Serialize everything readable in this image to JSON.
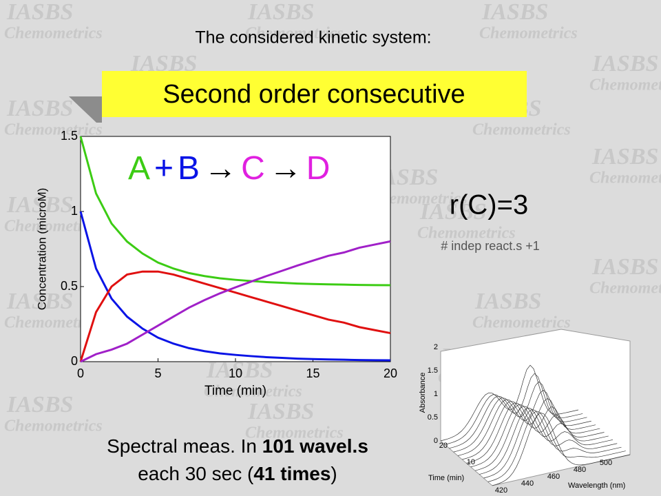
{
  "watermark": {
    "line1": "IASBS",
    "line2": "Chemometrics"
  },
  "title": "The considered kinetic system:",
  "banner": "Second order consecutive",
  "reaction": [
    "A",
    "+",
    "B",
    "→",
    "C",
    "→",
    "D"
  ],
  "rank": "r(C)=3",
  "rank_note": "# indep react.s +1",
  "footer": {
    "line1": [
      "Spectral meas. In ",
      "101 wavel.s"
    ],
    "line2": [
      "each 30 sec (",
      "41 times",
      ")"
    ]
  },
  "chart_data": {
    "type": "line",
    "x_label": "Time (min)",
    "y_label": "Concentration (microM)",
    "x": [
      0,
      1,
      2,
      3,
      4,
      5,
      6,
      7,
      8,
      9,
      10,
      11,
      12,
      13,
      14,
      15,
      16,
      17,
      18,
      19,
      20
    ],
    "series": [
      {
        "name": "A",
        "color": "#0a14e6",
        "values": [
          1,
          0.62,
          0.42,
          0.3,
          0.22,
          0.16,
          0.12,
          0.09,
          0.07,
          0.055,
          0.045,
          0.037,
          0.03,
          0.025,
          0.02,
          0.017,
          0.015,
          0.013,
          0.011,
          0.01,
          0.009
        ]
      },
      {
        "name": "B",
        "color": "#3ccc14",
        "values": [
          1.5,
          1.12,
          0.92,
          0.8,
          0.72,
          0.66,
          0.62,
          0.59,
          0.57,
          0.555,
          0.545,
          0.537,
          0.53,
          0.525,
          0.52,
          0.517,
          0.515,
          0.513,
          0.511,
          0.51,
          0.509
        ]
      },
      {
        "name": "C",
        "color": "#e01010",
        "values": [
          0,
          0.33,
          0.5,
          0.58,
          0.6,
          0.6,
          0.58,
          0.55,
          0.52,
          0.49,
          0.46,
          0.43,
          0.4,
          0.37,
          0.34,
          0.31,
          0.28,
          0.26,
          0.23,
          0.21,
          0.19
        ]
      },
      {
        "name": "D",
        "color": "#a020c8",
        "values": [
          0,
          0.05,
          0.08,
          0.12,
          0.18,
          0.24,
          0.3,
          0.36,
          0.41,
          0.455,
          0.495,
          0.533,
          0.57,
          0.605,
          0.64,
          0.673,
          0.705,
          0.727,
          0.759,
          0.78,
          0.801
        ]
      }
    ],
    "xlim": [
      0,
      20
    ],
    "xticks": [
      0,
      5,
      10,
      15,
      20
    ],
    "ylim": [
      0,
      1.5
    ],
    "yticks": [
      0,
      0.5,
      1,
      1.5
    ]
  },
  "surface_plot": {
    "z_label": "Absorbance",
    "z_ticks": [
      0,
      0.5,
      1,
      1.5,
      2
    ],
    "time_label": "Time (min)",
    "time_ticks": [
      20,
      10
    ],
    "wavelength_label": "Wavelength (nm)",
    "wavelength_ticks": [
      420,
      440,
      460,
      480,
      500
    ]
  }
}
